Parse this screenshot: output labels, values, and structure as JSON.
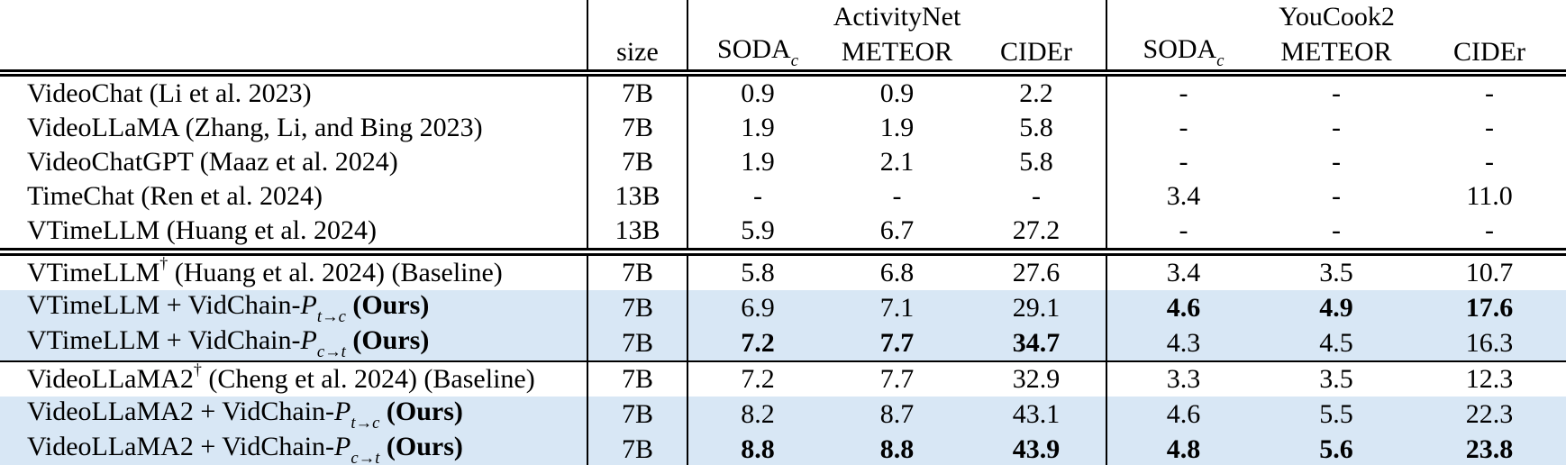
{
  "page": {
    "background": "#ffffff",
    "text_color": "#000000",
    "highlight_color": "#d8e7f5",
    "rule_color": "#000000"
  },
  "table": {
    "size_header": "size",
    "groups": [
      {
        "label": "ActivityNet"
      },
      {
        "label": "YouCook2"
      }
    ],
    "metrics": [
      {
        "name": "SODA",
        "sub": "c"
      },
      {
        "name": "METEOR",
        "sub": ""
      },
      {
        "name": "CIDEr",
        "sub": ""
      }
    ],
    "rows": [
      {
        "model": {
          "base": "VideoChat (Li et al. 2023)"
        },
        "size": "7B",
        "values": [
          "0.9",
          "0.9",
          "2.2",
          "-",
          "-",
          "-"
        ],
        "bold": [
          0,
          0,
          0,
          0,
          0,
          0
        ],
        "highlight": false,
        "rule_below": ""
      },
      {
        "model": {
          "base": "VideoLLaMA (Zhang, Li, and Bing 2023)"
        },
        "size": "7B",
        "values": [
          "1.9",
          "1.9",
          "5.8",
          "-",
          "-",
          "-"
        ],
        "bold": [
          0,
          0,
          0,
          0,
          0,
          0
        ],
        "highlight": false,
        "rule_below": ""
      },
      {
        "model": {
          "base": "VideoChatGPT (Maaz et al. 2024)"
        },
        "size": "7B",
        "values": [
          "1.9",
          "2.1",
          "5.8",
          "-",
          "-",
          "-"
        ],
        "bold": [
          0,
          0,
          0,
          0,
          0,
          0
        ],
        "highlight": false,
        "rule_below": ""
      },
      {
        "model": {
          "base": "TimeChat (Ren et al. 2024)"
        },
        "size": "13B",
        "values": [
          "-",
          "-",
          "-",
          "3.4",
          "-",
          "11.0"
        ],
        "bold": [
          0,
          0,
          0,
          0,
          0,
          0
        ],
        "highlight": false,
        "rule_below": ""
      },
      {
        "model": {
          "base": "VTimeLLM (Huang et al. 2024)"
        },
        "size": "13B",
        "values": [
          "5.9",
          "6.7",
          "27.2",
          "-",
          "-",
          "-"
        ],
        "bold": [
          0,
          0,
          0,
          0,
          0,
          0
        ],
        "highlight": false,
        "rule_below": "double"
      },
      {
        "model": {
          "base": "VTimeLLM",
          "dagger": "†",
          "rest": " (Huang et al. 2024) (Baseline)"
        },
        "size": "7B",
        "values": [
          "5.8",
          "6.8",
          "27.6",
          "3.4",
          "3.5",
          "10.7"
        ],
        "bold": [
          0,
          0,
          0,
          0,
          0,
          0
        ],
        "highlight": false,
        "rule_below": ""
      },
      {
        "model": {
          "base": "VTimeLLM + VidChain-",
          "scriptP": "P",
          "sub": "t→c",
          "ours": "(Ours)"
        },
        "size": "7B",
        "values": [
          "6.9",
          "7.1",
          "29.1",
          "4.6",
          "4.9",
          "17.6"
        ],
        "bold": [
          0,
          0,
          0,
          1,
          1,
          1
        ],
        "highlight": true,
        "rule_below": ""
      },
      {
        "model": {
          "base": "VTimeLLM + VidChain-",
          "scriptP": "P",
          "sub": "c→t",
          "ours": "(Ours)"
        },
        "size": "7B",
        "values": [
          "7.2",
          "7.7",
          "34.7",
          "4.3",
          "4.5",
          "16.3"
        ],
        "bold": [
          1,
          1,
          1,
          0,
          0,
          0
        ],
        "highlight": true,
        "rule_below": "single"
      },
      {
        "model": {
          "base": "VideoLLaMA2",
          "dagger": "†",
          "rest": " (Cheng et al. 2024) (Baseline)"
        },
        "size": "7B",
        "values": [
          "7.2",
          "7.7",
          "32.9",
          "3.3",
          "3.5",
          "12.3"
        ],
        "bold": [
          0,
          0,
          0,
          0,
          0,
          0
        ],
        "highlight": false,
        "rule_below": ""
      },
      {
        "model": {
          "base": "VideoLLaMA2 + VidChain-",
          "scriptP": "P",
          "sub": "t→c",
          "ours": "(Ours)"
        },
        "size": "7B",
        "values": [
          "8.2",
          "8.7",
          "43.1",
          "4.6",
          "5.5",
          "22.3"
        ],
        "bold": [
          0,
          0,
          0,
          0,
          0,
          0
        ],
        "highlight": true,
        "rule_below": ""
      },
      {
        "model": {
          "base": "VideoLLaMA2 + VidChain-",
          "scriptP": "P",
          "sub": "c→t",
          "ours": "(Ours)"
        },
        "size": "7B",
        "values": [
          "8.8",
          "8.8",
          "43.9",
          "4.8",
          "5.6",
          "23.8"
        ],
        "bold": [
          1,
          1,
          1,
          1,
          1,
          1
        ],
        "highlight": true,
        "rule_below": ""
      }
    ]
  }
}
